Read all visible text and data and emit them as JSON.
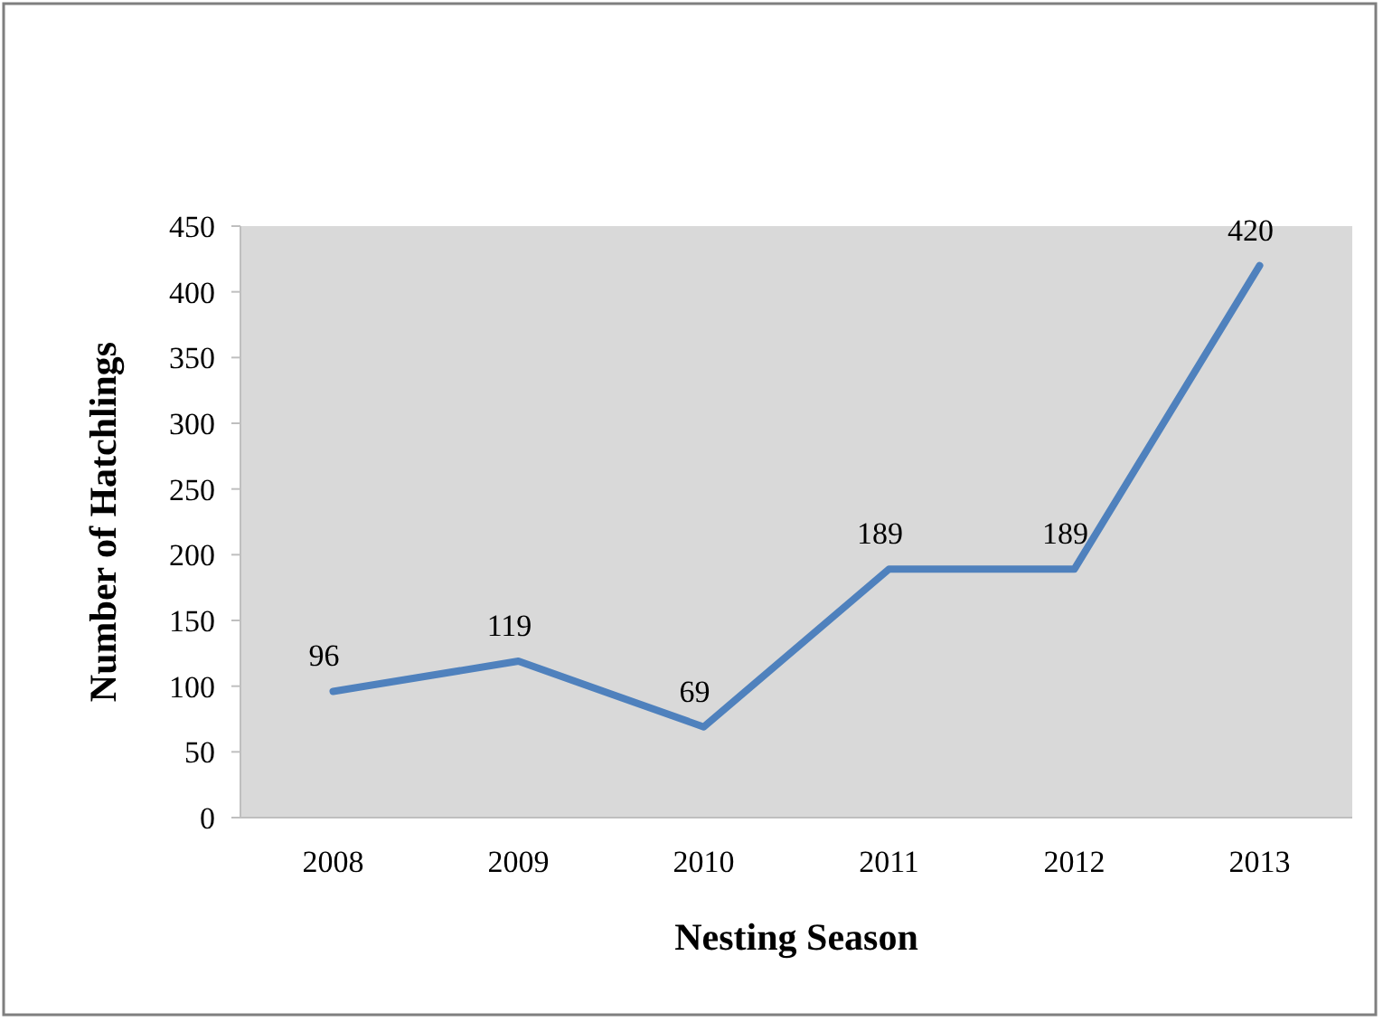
{
  "chart_data": {
    "type": "line",
    "xlabel": "Nesting Season",
    "ylabel": "Number of Hatchlings",
    "categories": [
      "2008",
      "2009",
      "2010",
      "2011",
      "2012",
      "2013"
    ],
    "series": [
      {
        "color": "#4f81bd",
        "values": [
          96,
          119,
          69,
          189,
          189,
          420
        ]
      }
    ],
    "ylim": [
      0,
      450
    ],
    "yticks": [
      0,
      50,
      100,
      150,
      200,
      250,
      300,
      350,
      400,
      450
    ],
    "data_labels": true,
    "grid": false,
    "marker": "none",
    "line_style": "solid"
  }
}
